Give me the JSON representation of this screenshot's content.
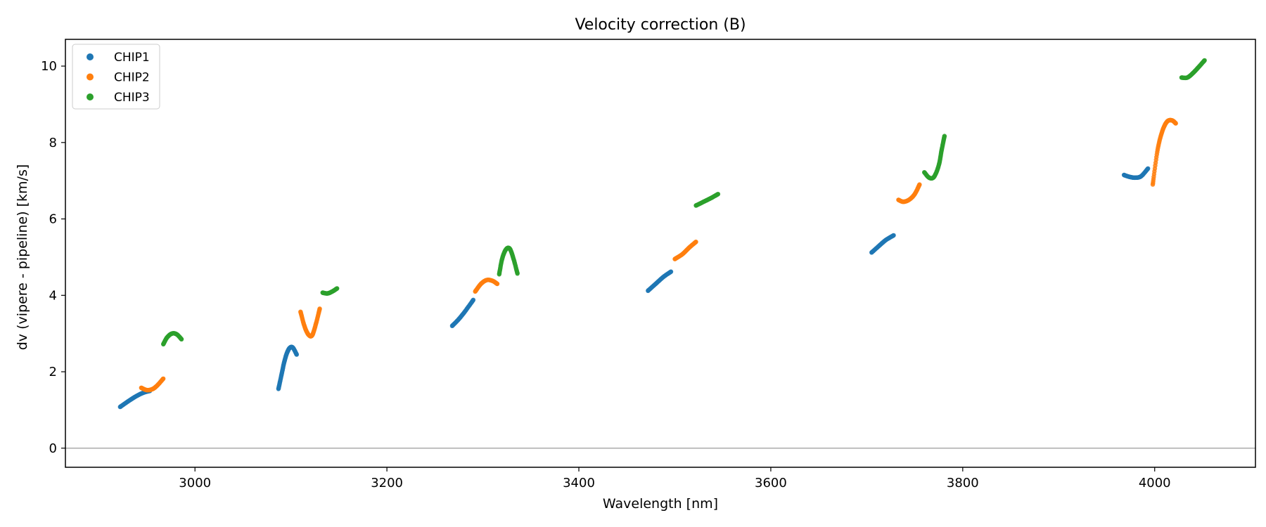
{
  "chart_data": {
    "type": "scatter",
    "title": "Velocity correction (B)",
    "xlabel": "Wavelength [nm]",
    "ylabel": "dv (vipere - pipeline) [km/s]",
    "xlim": [
      2865,
      4105
    ],
    "ylim": [
      -0.5,
      10.7
    ],
    "xticks": [
      3000,
      3200,
      3400,
      3600,
      3800,
      4000
    ],
    "yticks": [
      0,
      2,
      4,
      6,
      8,
      10
    ],
    "zero_line": true,
    "grid": false,
    "legend_position": "upper-left",
    "series": [
      {
        "name": "CHIP1",
        "color": "#1f77b4",
        "segments": [
          [
            [
              2922,
              1.08
            ],
            [
              2930,
              1.22
            ],
            [
              2938,
              1.35
            ],
            [
              2946,
              1.45
            ],
            [
              2953,
              1.5
            ]
          ],
          [
            [
              3087,
              1.55
            ],
            [
              3090,
              1.9
            ],
            [
              3093,
              2.25
            ],
            [
              3096,
              2.5
            ],
            [
              3099,
              2.63
            ],
            [
              3102,
              2.63
            ],
            [
              3106,
              2.45
            ]
          ],
          [
            [
              3268,
              3.2
            ],
            [
              3275,
              3.38
            ],
            [
              3282,
              3.6
            ],
            [
              3290,
              3.88
            ]
          ],
          [
            [
              3472,
              4.12
            ],
            [
              3480,
              4.3
            ],
            [
              3488,
              4.48
            ],
            [
              3496,
              4.62
            ]
          ],
          [
            [
              3705,
              5.12
            ],
            [
              3713,
              5.3
            ],
            [
              3720,
              5.45
            ],
            [
              3728,
              5.57
            ]
          ],
          [
            [
              3968,
              7.15
            ],
            [
              3974,
              7.1
            ],
            [
              3980,
              7.08
            ],
            [
              3986,
              7.12
            ],
            [
              3993,
              7.32
            ]
          ]
        ]
      },
      {
        "name": "CHIP2",
        "color": "#ff7f0e",
        "segments": [
          [
            [
              2944,
              1.58
            ],
            [
              2950,
              1.52
            ],
            [
              2956,
              1.55
            ],
            [
              2961,
              1.65
            ],
            [
              2967,
              1.82
            ]
          ],
          [
            [
              3110,
              3.57
            ],
            [
              3114,
              3.2
            ],
            [
              3118,
              2.98
            ],
            [
              3122,
              2.95
            ],
            [
              3126,
              3.25
            ],
            [
              3130,
              3.65
            ]
          ],
          [
            [
              3292,
              4.1
            ],
            [
              3298,
              4.3
            ],
            [
              3304,
              4.4
            ],
            [
              3310,
              4.38
            ],
            [
              3315,
              4.3
            ]
          ],
          [
            [
              3500,
              4.95
            ],
            [
              3508,
              5.08
            ],
            [
              3515,
              5.25
            ],
            [
              3522,
              5.4
            ]
          ],
          [
            [
              3733,
              6.5
            ],
            [
              3738,
              6.45
            ],
            [
              3744,
              6.5
            ],
            [
              3750,
              6.65
            ],
            [
              3755,
              6.9
            ]
          ],
          [
            [
              3998,
              6.9
            ],
            [
              4003,
              7.8
            ],
            [
              4008,
              8.3
            ],
            [
              4013,
              8.55
            ],
            [
              4018,
              8.58
            ],
            [
              4022,
              8.5
            ]
          ]
        ]
      },
      {
        "name": "CHIP3",
        "color": "#2ca02c",
        "segments": [
          [
            [
              2967,
              2.72
            ],
            [
              2971,
              2.9
            ],
            [
              2976,
              3.0
            ],
            [
              2981,
              2.98
            ],
            [
              2986,
              2.85
            ]
          ],
          [
            [
              3133,
              4.07
            ],
            [
              3138,
              4.05
            ],
            [
              3143,
              4.1
            ],
            [
              3148,
              4.18
            ]
          ],
          [
            [
              3317,
              4.55
            ],
            [
              3320,
              4.95
            ],
            [
              3324,
              5.2
            ],
            [
              3328,
              5.22
            ],
            [
              3332,
              4.95
            ],
            [
              3336,
              4.57
            ]
          ],
          [
            [
              3522,
              6.35
            ],
            [
              3530,
              6.45
            ],
            [
              3538,
              6.55
            ],
            [
              3545,
              6.65
            ]
          ],
          [
            [
              3760,
              7.22
            ],
            [
              3765,
              7.08
            ],
            [
              3770,
              7.1
            ],
            [
              3775,
              7.4
            ],
            [
              3778,
              7.8
            ],
            [
              3781,
              8.17
            ]
          ],
          [
            [
              4028,
              9.7
            ],
            [
              4034,
              9.7
            ],
            [
              4040,
              9.82
            ],
            [
              4046,
              9.98
            ],
            [
              4052,
              10.15
            ]
          ]
        ]
      }
    ]
  }
}
